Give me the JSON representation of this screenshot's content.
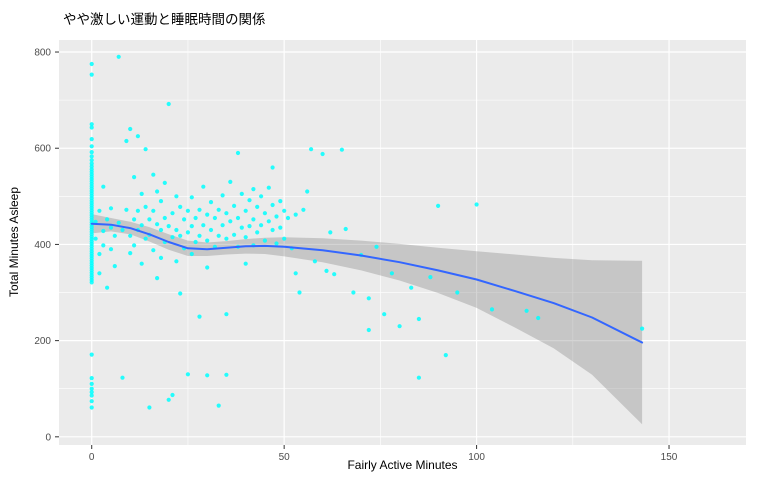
{
  "chart_data": {
    "type": "scatter",
    "title": "やや激しい運動と睡眠時間の関係",
    "xlabel": "Fairly Active Minutes",
    "ylabel": "Total Minutes Asleep",
    "x_ticks": [
      0,
      50,
      100,
      150
    ],
    "y_ticks": [
      0,
      200,
      400,
      600,
      800
    ],
    "x_minor": [
      25,
      75,
      125
    ],
    "y_minor": [
      100,
      300,
      500,
      700
    ],
    "xlim": [
      -8.5,
      170
    ],
    "ylim": [
      -17,
      825
    ],
    "grid": true,
    "legend": "none",
    "colors": {
      "panel_bg": "#EBEBEB",
      "grid": "#FFFFFF",
      "point": "#00FFFF",
      "smooth_line": "#3366FF",
      "band": "#6F6F6F",
      "band_opacity": 0.3,
      "tick_text": "#4D4D4D",
      "tick_mark": "#333333"
    },
    "smooth": {
      "x": [
        0,
        5,
        10,
        15,
        20,
        25,
        30,
        35,
        40,
        45,
        50,
        60,
        70,
        80,
        90,
        100,
        110,
        120,
        130,
        143
      ],
      "y": [
        443,
        441,
        434,
        421,
        405,
        392,
        390,
        393,
        396,
        397,
        395,
        388,
        377,
        363,
        346,
        327,
        303,
        278,
        248,
        196
      ],
      "ci_upper": [
        463,
        455,
        447,
        436,
        421,
        408,
        404,
        407,
        411,
        414,
        415,
        413,
        408,
        401,
        393,
        386,
        379,
        372,
        367,
        366
      ],
      "ci_lower": [
        423,
        427,
        421,
        406,
        389,
        376,
        376,
        379,
        381,
        380,
        375,
        363,
        346,
        325,
        299,
        268,
        227,
        184,
        129,
        26
      ]
    },
    "points": [
      [
        0,
        775
      ],
      [
        0,
        753
      ],
      [
        0,
        650
      ],
      [
        0,
        643
      ],
      [
        0,
        619
      ],
      [
        0,
        604
      ],
      [
        0,
        592
      ],
      [
        0,
        583
      ],
      [
        0,
        575
      ],
      [
        0,
        568
      ],
      [
        0,
        562
      ],
      [
        0,
        556
      ],
      [
        0,
        551
      ],
      [
        0,
        546
      ],
      [
        0,
        541
      ],
      [
        0,
        536
      ],
      [
        0,
        531
      ],
      [
        0,
        526
      ],
      [
        0,
        521
      ],
      [
        0,
        516
      ],
      [
        0,
        511
      ],
      [
        0,
        506
      ],
      [
        0,
        501
      ],
      [
        0,
        496
      ],
      [
        0,
        491
      ],
      [
        0,
        486
      ],
      [
        0,
        481
      ],
      [
        0,
        476
      ],
      [
        0,
        471
      ],
      [
        0,
        466
      ],
      [
        0,
        461
      ],
      [
        0,
        456
      ],
      [
        0,
        451
      ],
      [
        0,
        446
      ],
      [
        0,
        441
      ],
      [
        0,
        436
      ],
      [
        0,
        431
      ],
      [
        0,
        426
      ],
      [
        0,
        421
      ],
      [
        0,
        416
      ],
      [
        0,
        411
      ],
      [
        0,
        406
      ],
      [
        0,
        401
      ],
      [
        0,
        396
      ],
      [
        0,
        391
      ],
      [
        0,
        386
      ],
      [
        0,
        381
      ],
      [
        0,
        376
      ],
      [
        0,
        371
      ],
      [
        0,
        366
      ],
      [
        0,
        361
      ],
      [
        0,
        356
      ],
      [
        0,
        351
      ],
      [
        0,
        346
      ],
      [
        0,
        341
      ],
      [
        0,
        336
      ],
      [
        0,
        331
      ],
      [
        0,
        326
      ],
      [
        0,
        321
      ],
      [
        0,
        171
      ],
      [
        0,
        122
      ],
      [
        0,
        110
      ],
      [
        0,
        100
      ],
      [
        0,
        93
      ],
      [
        0,
        86
      ],
      [
        0,
        74
      ],
      [
        0,
        61
      ],
      [
        1,
        447
      ],
      [
        1,
        412
      ],
      [
        2,
        380
      ],
      [
        2,
        470
      ],
      [
        2,
        340
      ],
      [
        3,
        428
      ],
      [
        3,
        398
      ],
      [
        3,
        520
      ],
      [
        4,
        452
      ],
      [
        4,
        310
      ],
      [
        5,
        435
      ],
      [
        5,
        390
      ],
      [
        5,
        475
      ],
      [
        6,
        418
      ],
      [
        6,
        355
      ],
      [
        7,
        790
      ],
      [
        7,
        445
      ],
      [
        8,
        123
      ],
      [
        8,
        430
      ],
      [
        9,
        615
      ],
      [
        9,
        472
      ],
      [
        10,
        640
      ],
      [
        10,
        418
      ],
      [
        10,
        382
      ],
      [
        11,
        540
      ],
      [
        11,
        452
      ],
      [
        11,
        398
      ],
      [
        12,
        625
      ],
      [
        12,
        470
      ],
      [
        12,
        430
      ],
      [
        13,
        505
      ],
      [
        13,
        440
      ],
      [
        13,
        360
      ],
      [
        14,
        598
      ],
      [
        14,
        478
      ],
      [
        14,
        412
      ],
      [
        15,
        61
      ],
      [
        15,
        452
      ],
      [
        15,
        420
      ],
      [
        16,
        545
      ],
      [
        16,
        470
      ],
      [
        16,
        388
      ],
      [
        17,
        510
      ],
      [
        17,
        442
      ],
      [
        17,
        330
      ],
      [
        18,
        490
      ],
      [
        18,
        430
      ],
      [
        18,
        372
      ],
      [
        19,
        528
      ],
      [
        19,
        455
      ],
      [
        19,
        405
      ],
      [
        20,
        692
      ],
      [
        20,
        77
      ],
      [
        20,
        438
      ],
      [
        21,
        87
      ],
      [
        21,
        465
      ],
      [
        21,
        415
      ],
      [
        22,
        500
      ],
      [
        22,
        430
      ],
      [
        22,
        365
      ],
      [
        23,
        478
      ],
      [
        23,
        418
      ],
      [
        23,
        298
      ],
      [
        24,
        452
      ],
      [
        24,
        392
      ],
      [
        25,
        130
      ],
      [
        25,
        470
      ],
      [
        25,
        425
      ],
      [
        26,
        498
      ],
      [
        26,
        438
      ],
      [
        26,
        380
      ],
      [
        27,
        455
      ],
      [
        27,
        405
      ],
      [
        28,
        250
      ],
      [
        28,
        472
      ],
      [
        28,
        418
      ],
      [
        29,
        520
      ],
      [
        29,
        440
      ],
      [
        30,
        128
      ],
      [
        30,
        462
      ],
      [
        30,
        408
      ],
      [
        30,
        352
      ],
      [
        31,
        488
      ],
      [
        31,
        430
      ],
      [
        32,
        455
      ],
      [
        32,
        395
      ],
      [
        33,
        65
      ],
      [
        33,
        472
      ],
      [
        33,
        418
      ],
      [
        34,
        502
      ],
      [
        34,
        440
      ],
      [
        35,
        129
      ],
      [
        35,
        255
      ],
      [
        35,
        465
      ],
      [
        35,
        412
      ],
      [
        36,
        530
      ],
      [
        36,
        448
      ],
      [
        37,
        480
      ],
      [
        37,
        420
      ],
      [
        38,
        590
      ],
      [
        38,
        455
      ],
      [
        38,
        395
      ],
      [
        39,
        505
      ],
      [
        39,
        435
      ],
      [
        40,
        470
      ],
      [
        40,
        415
      ],
      [
        40,
        360
      ],
      [
        41,
        492
      ],
      [
        41,
        438
      ],
      [
        42,
        515
      ],
      [
        42,
        452
      ],
      [
        42,
        398
      ],
      [
        43,
        478
      ],
      [
        43,
        425
      ],
      [
        44,
        500
      ],
      [
        44,
        440
      ],
      [
        45,
        465
      ],
      [
        45,
        408
      ],
      [
        46,
        518
      ],
      [
        46,
        448
      ],
      [
        47,
        560
      ],
      [
        47,
        482
      ],
      [
        47,
        430
      ],
      [
        48,
        458
      ],
      [
        48,
        402
      ],
      [
        49,
        490
      ],
      [
        49,
        435
      ],
      [
        50,
        470
      ],
      [
        50,
        412
      ],
      [
        51,
        455
      ],
      [
        52,
        392
      ],
      [
        53,
        340
      ],
      [
        53,
        462
      ],
      [
        54,
        300
      ],
      [
        55,
        472
      ],
      [
        56,
        510
      ],
      [
        57,
        598
      ],
      [
        58,
        365
      ],
      [
        60,
        588
      ],
      [
        61,
        345
      ],
      [
        62,
        425
      ],
      [
        63,
        338
      ],
      [
        65,
        597
      ],
      [
        66,
        432
      ],
      [
        68,
        300
      ],
      [
        70,
        378
      ],
      [
        72,
        222
      ],
      [
        72,
        288
      ],
      [
        74,
        395
      ],
      [
        76,
        255
      ],
      [
        78,
        340
      ],
      [
        80,
        230
      ],
      [
        83,
        310
      ],
      [
        85,
        123
      ],
      [
        85,
        245
      ],
      [
        88,
        332
      ],
      [
        90,
        480
      ],
      [
        92,
        170
      ],
      [
        95,
        300
      ],
      [
        100,
        483
      ],
      [
        104,
        265
      ],
      [
        113,
        262
      ],
      [
        116,
        247
      ],
      [
        143,
        225
      ]
    ]
  }
}
